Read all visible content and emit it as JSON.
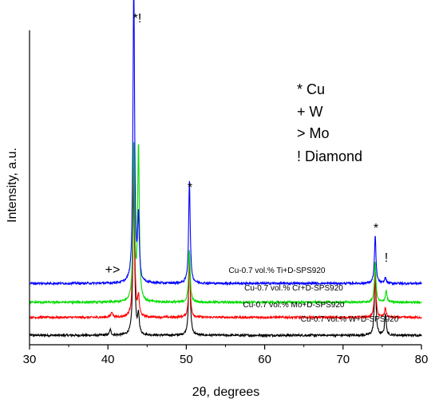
{
  "chart_data": {
    "type": "line",
    "xlabel": "2θ, degrees",
    "ylabel": "Intensity, a.u.",
    "xlim": [
      30,
      80
    ],
    "x_ticks": [
      "30",
      "40",
      "50",
      "60",
      "70",
      "80"
    ],
    "grid": false,
    "legend_entries": [
      "*  Cu",
      "+  W",
      "> Mo",
      "! Diamond"
    ],
    "legend_position": "top-right",
    "annotations": [
      {
        "text": "*!",
        "x": 43.7
      },
      {
        "text": "*",
        "x": 50.4
      },
      {
        "text": "*",
        "x": 74.2
      },
      {
        "text": "!",
        "x": 75.6
      },
      {
        "text": "+>",
        "x": 40.6
      }
    ],
    "series": [
      {
        "name": "Cu-0.7 vol.% W+D-SPS920",
        "color": "#000000",
        "baseline": 2.0,
        "peaks": [
          [
            40.3,
            1.2
          ],
          [
            43.3,
            33.5
          ],
          [
            43.9,
            4.0
          ],
          [
            50.4,
            17.5
          ],
          [
            74.1,
            13.0
          ],
          [
            75.4,
            4.5
          ]
        ]
      },
      {
        "name": "Cu-0.7 vol.% Mo+D-SPS920",
        "color": "#ff0000",
        "baseline": 5.8,
        "peaks": [
          [
            40.5,
            1.2
          ],
          [
            43.3,
            33.5
          ],
          [
            43.9,
            4.0
          ],
          [
            50.4,
            12.0
          ],
          [
            74.1,
            9.5
          ],
          [
            75.4,
            2.0
          ]
        ]
      },
      {
        "name": "Cu-0.7 vol.% Cr+D-SPS920",
        "color": "#00dd00",
        "baseline": 9.0,
        "peaks": [
          [
            43.3,
            33.5
          ],
          [
            43.9,
            33.0
          ],
          [
            50.4,
            11.0
          ],
          [
            74.1,
            8.5
          ],
          [
            75.5,
            2.5
          ]
        ]
      },
      {
        "name": "Cu-0.7 vol.% Ti+D-SPS920",
        "color": "#0000ff",
        "baseline": 13.0,
        "peaks": [
          [
            43.3,
            64.0
          ],
          [
            43.9,
            13.5
          ],
          [
            50.4,
            21.5
          ],
          [
            74.1,
            10.0
          ],
          [
            75.4,
            1.2
          ]
        ]
      }
    ]
  }
}
